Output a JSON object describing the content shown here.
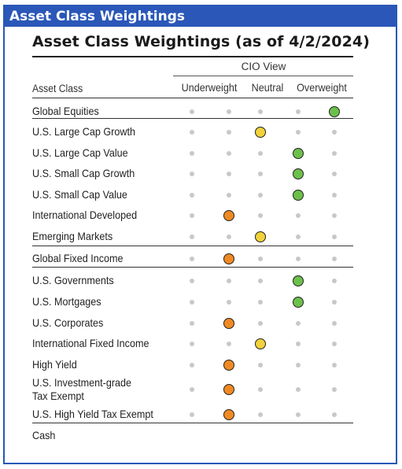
{
  "header": {
    "title": "Asset Class Weightings"
  },
  "table": {
    "title": "Asset Class Weightings (as of 4/2/2024)",
    "cio_view_label": "CIO View",
    "asset_class_header": "Asset Class",
    "columns": [
      "Underweight",
      "Neutral",
      "Overweight"
    ],
    "rows": [
      {
        "label": "Global Equities",
        "position": 4,
        "color": "green"
      },
      {
        "label": "U.S. Large Cap Growth",
        "position": 2,
        "color": "yellow"
      },
      {
        "label": "U.S. Large Cap Value",
        "position": 3,
        "color": "green"
      },
      {
        "label": "U.S. Small Cap Growth",
        "position": 3,
        "color": "green"
      },
      {
        "label": "U.S. Small Cap Value",
        "position": 3,
        "color": "green"
      },
      {
        "label": "International Developed",
        "position": 1,
        "color": "orange"
      },
      {
        "label": "Emerging Markets",
        "position": 2,
        "color": "yellow"
      },
      {
        "label": "Global Fixed Income",
        "position": 1,
        "color": "orange"
      },
      {
        "label": "U.S. Governments",
        "position": 3,
        "color": "green"
      },
      {
        "label": "U.S. Mortgages",
        "position": 3,
        "color": "green"
      },
      {
        "label": "U.S. Corporates",
        "position": 1,
        "color": "orange"
      },
      {
        "label": "International Fixed Income",
        "position": 2,
        "color": "yellow"
      },
      {
        "label": "High Yield",
        "position": 1,
        "color": "orange"
      },
      {
        "label": "U.S. Investment-grade\nTax Exempt",
        "position": 1,
        "color": "orange"
      },
      {
        "label": "U.S. High Yield Tax Exempt",
        "position": 1,
        "color": "orange"
      },
      {
        "label": "Cash",
        "position": null,
        "color": null
      }
    ]
  },
  "colors": {
    "green": "#6cc04a",
    "yellow": "#f2d23a",
    "orange": "#ef8a23",
    "frame": "#2a57b8"
  }
}
